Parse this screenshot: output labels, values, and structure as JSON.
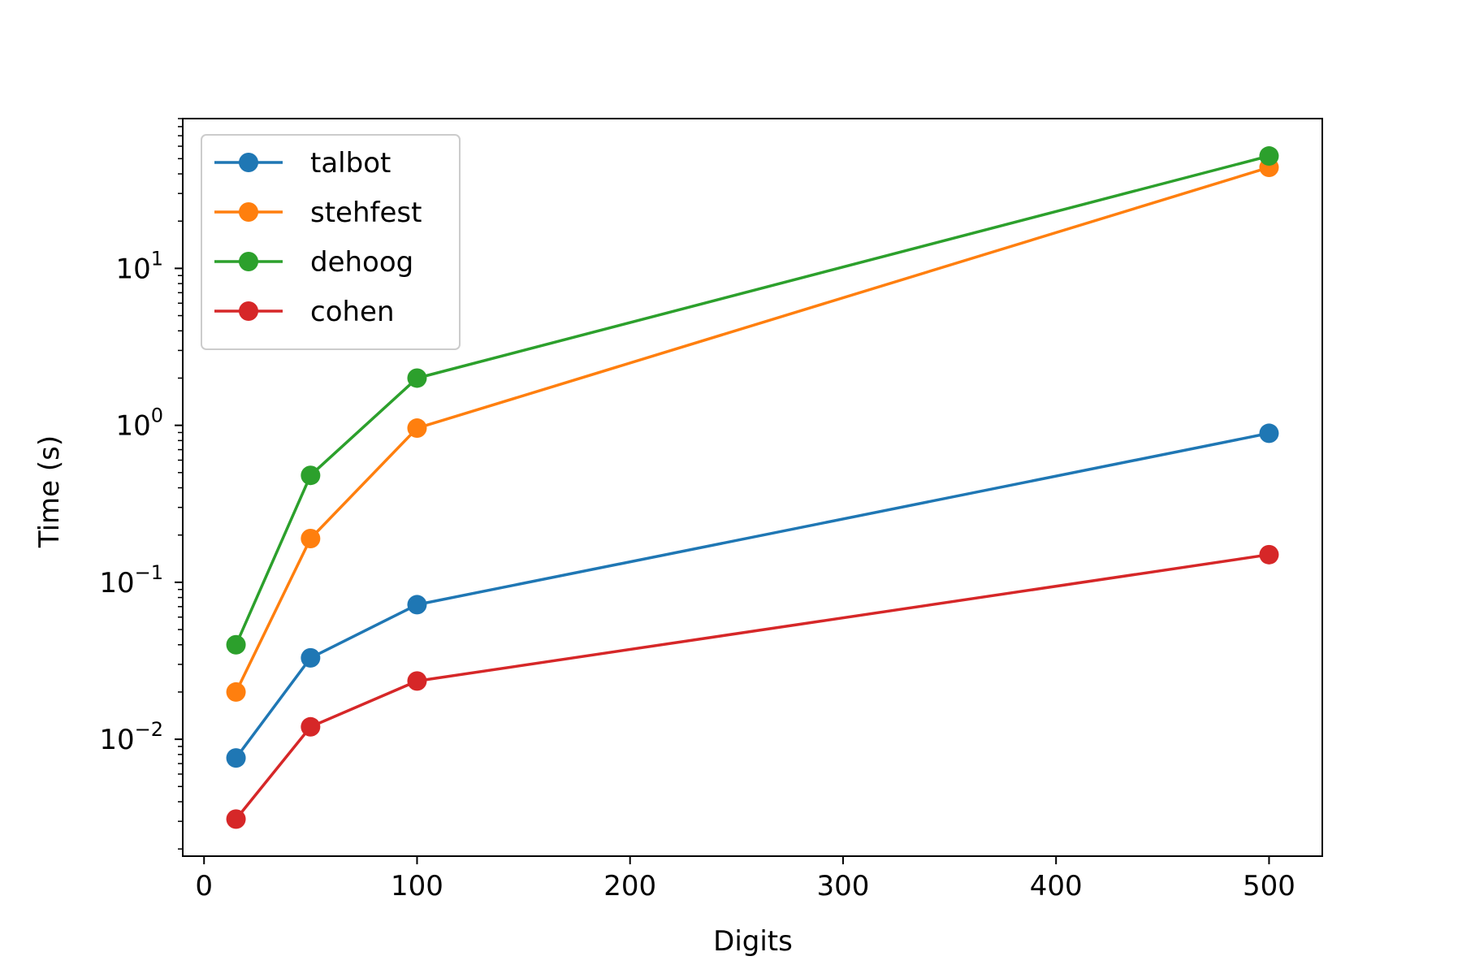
{
  "chart_data": {
    "type": "line",
    "title": "",
    "xlabel": "Digits",
    "ylabel": "Time (s)",
    "xlim": [
      -10,
      525
    ],
    "ylim": [
      0.0018,
      90
    ],
    "yscale": "log",
    "grid": false,
    "legend_position": "top-left",
    "x_ticks": [
      0,
      100,
      200,
      300,
      400,
      500
    ],
    "y_ticks": [
      {
        "value": 0.01,
        "base": "10",
        "exp": "−2"
      },
      {
        "value": 0.1,
        "base": "10",
        "exp": "−1"
      },
      {
        "value": 1,
        "base": "10",
        "exp": "0"
      },
      {
        "value": 10,
        "base": "10",
        "exp": "1"
      }
    ],
    "x": [
      15,
      50,
      100,
      500
    ],
    "series": [
      {
        "name": "talbot",
        "color": "#1f77b4",
        "values": [
          0.0076,
          0.033,
          0.072,
          0.89
        ]
      },
      {
        "name": "stehfest",
        "color": "#ff7f0e",
        "values": [
          0.02,
          0.19,
          0.96,
          44
        ]
      },
      {
        "name": "dehoog",
        "color": "#2ca02c",
        "values": [
          0.04,
          0.48,
          2.0,
          52
        ]
      },
      {
        "name": "cohen",
        "color": "#d62728",
        "values": [
          0.0031,
          0.012,
          0.0235,
          0.15
        ]
      }
    ]
  }
}
